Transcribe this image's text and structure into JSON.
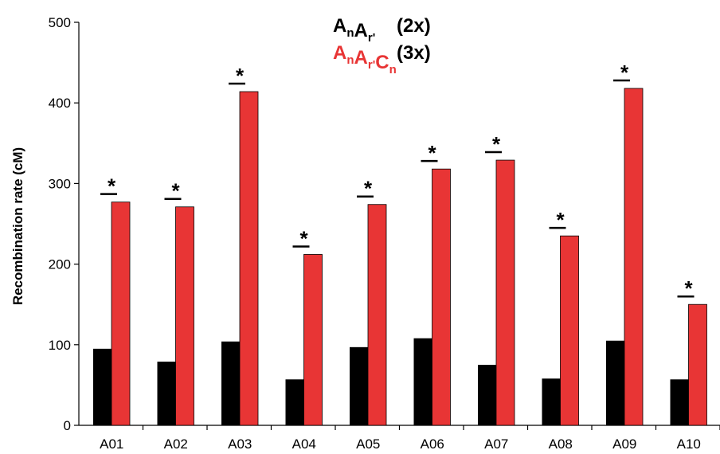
{
  "chart_data": {
    "type": "bar",
    "ylabel": "Recombination rate (cM)",
    "ylim": [
      0,
      500
    ],
    "yticks": [
      "0",
      "100",
      "200",
      "300",
      "400",
      "500"
    ],
    "categories": [
      "A01",
      "A02",
      "A03",
      "A04",
      "A05",
      "A06",
      "A07",
      "A08",
      "A09",
      "A10"
    ],
    "series": [
      {
        "name": "AnAr' (2x)",
        "color": "#000000",
        "values": [
          95,
          79,
          104,
          57,
          97,
          108,
          75,
          58,
          105,
          57
        ]
      },
      {
        "name": "AnAr'Cn (3x)",
        "color": "#e83535",
        "values": [
          277,
          271,
          414,
          212,
          274,
          318,
          329,
          235,
          418,
          150
        ]
      }
    ],
    "significance_marker": "*",
    "legend": {
      "placement": "top",
      "entries": [
        {
          "parts": [
            [
              "A",
              ""
            ],
            [
              "n",
              "sub"
            ],
            [
              "A",
              ""
            ],
            [
              "r'",
              "sub"
            ]
          ],
          "ploidy": "(2x)",
          "color": "#000000"
        },
        {
          "parts": [
            [
              "A",
              ""
            ],
            [
              "n",
              "sub"
            ],
            [
              "A",
              ""
            ],
            [
              "r'",
              "sub"
            ],
            [
              "C",
              ""
            ],
            [
              "n",
              "sub"
            ]
          ],
          "ploidy": "(3x)",
          "color": "#e83535"
        }
      ]
    }
  }
}
